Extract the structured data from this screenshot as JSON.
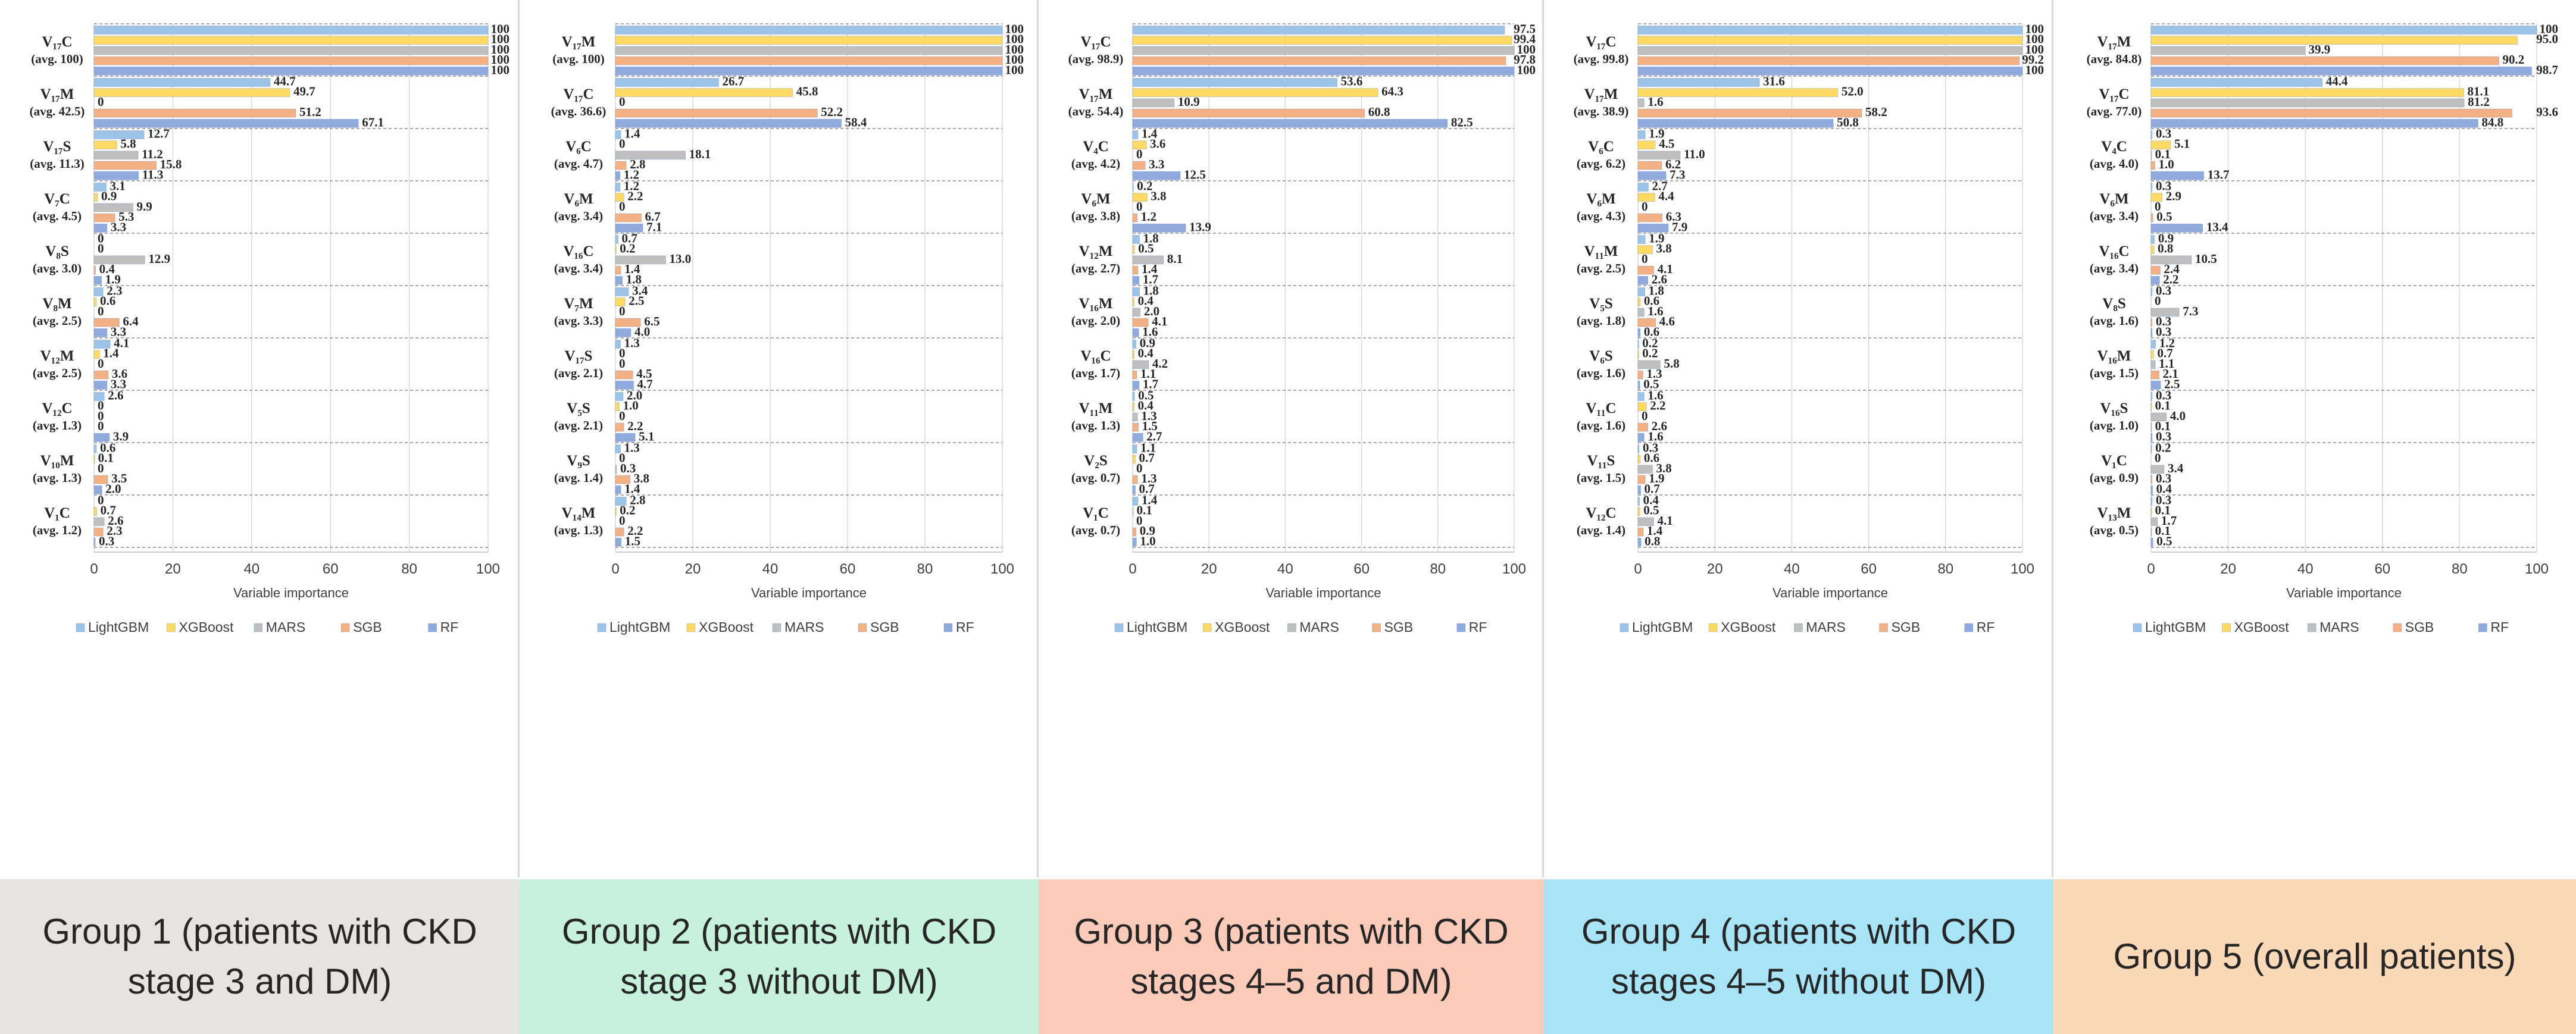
{
  "legend": [
    "LightGBM",
    "XGBoost",
    "MARS",
    "SGB",
    "RF"
  ],
  "colors": {
    "LightGBM": "#9DC3E6",
    "XGBoost": "#FFD966",
    "MARS": "#BFBFBF",
    "SGB": "#F4B183",
    "RF": "#8FAADC",
    "gridline": "#d9d9d9",
    "divider": "#8c8c8c",
    "text": "#262626"
  },
  "captions": [
    {
      "text": "Group 1 (patients with CKD stage 3 and DM)",
      "bg": "#E7E3E1"
    },
    {
      "text": "Group 2 (patients with CKD stage 3 without DM)",
      "bg": "#C6F2DC"
    },
    {
      "text": "Group 3 (patients with CKD stages 4–5 and DM)",
      "bg": "#FCCAB8"
    },
    {
      "text": "Group 4 (patients with CKD stages 4–5 without DM)",
      "bg": "#A8E4F8"
    },
    {
      "text": "Group 5 (overall patients)",
      "bg": "#FBD9B8"
    }
  ],
  "chart_data": [
    {
      "type": "bar",
      "orientation": "horizontal",
      "xlabel": "Variable importance",
      "xlim": [
        0,
        100
      ],
      "xticks": [
        "0",
        "20",
        "40",
        "60",
        "80",
        "100"
      ],
      "legend_position": "bottom",
      "groups": [
        {
          "name": "V₁₇C",
          "avg": "(avg. 100)",
          "values": [
            "100",
            "100",
            "100",
            "100",
            "100"
          ]
        },
        {
          "name": "V₁₇M",
          "avg": "(avg. 42.5)",
          "values": [
            "44.7",
            "49.7",
            "0",
            "51.2",
            "67.1"
          ]
        },
        {
          "name": "V₁₇S",
          "avg": "(avg. 11.3)",
          "values": [
            "12.7",
            "5.8",
            "11.2",
            "15.8",
            "11.3"
          ]
        },
        {
          "name": "V₇C",
          "avg": "(avg. 4.5)",
          "values": [
            "3.1",
            "0.9",
            "9.9",
            "5.3",
            "3.3"
          ]
        },
        {
          "name": "V₈S",
          "avg": "(avg. 3.0)",
          "values": [
            "0",
            "0",
            "12.9",
            "0.4",
            "1.9"
          ]
        },
        {
          "name": "V₈M",
          "avg": "(avg. 2.5)",
          "values": [
            "2.3",
            "0.6",
            "0",
            "6.4",
            "3.3"
          ]
        },
        {
          "name": "V₁₂M",
          "avg": "(avg. 2.5)",
          "values": [
            "4.1",
            "1.4",
            "0",
            "3.6",
            "3.3"
          ]
        },
        {
          "name": "V₁₂C",
          "avg": "(avg. 1.3)",
          "values": [
            "2.6",
            "0",
            "0",
            "0",
            "3.9"
          ]
        },
        {
          "name": "V₁₀M",
          "avg": "(avg. 1.3)",
          "values": [
            "0.6",
            "0.1",
            "0",
            "3.5",
            "2.0"
          ]
        },
        {
          "name": "V₁C",
          "avg": "(avg. 1.2)",
          "values": [
            "0",
            "0.7",
            "2.6",
            "2.3",
            "0.3"
          ]
        }
      ]
    },
    {
      "type": "bar",
      "orientation": "horizontal",
      "xlabel": "Variable importance",
      "xlim": [
        0,
        100
      ],
      "xticks": [
        "0",
        "20",
        "40",
        "60",
        "80",
        "100"
      ],
      "legend_position": "bottom",
      "groups": [
        {
          "name": "V₁₇M",
          "avg": "(avg. 100)",
          "values": [
            "100",
            "100",
            "100",
            "100",
            "100"
          ]
        },
        {
          "name": "V₁₇C",
          "avg": "(avg. 36.6)",
          "values": [
            "26.7",
            "45.8",
            "0",
            "52.2",
            "58.4"
          ]
        },
        {
          "name": "V₆C",
          "avg": "(avg. 4.7)",
          "values": [
            "1.4",
            "0",
            "18.1",
            "2.8",
            "1.2"
          ]
        },
        {
          "name": "V₆M",
          "avg": "(avg. 3.4)",
          "values": [
            "1.2",
            "2.2",
            "0",
            "6.7",
            "7.1"
          ]
        },
        {
          "name": "V₁₆C",
          "avg": "(avg. 3.4)",
          "values": [
            "0.7",
            "0.2",
            "13.0",
            "1.4",
            "1.8"
          ]
        },
        {
          "name": "V₇M",
          "avg": "(avg. 3.3)",
          "values": [
            "3.4",
            "2.5",
            "0",
            "6.5",
            "4.0"
          ]
        },
        {
          "name": "V₁₇S",
          "avg": "(avg. 2.1)",
          "values": [
            "1.3",
            "0",
            "0",
            "4.5",
            "4.7"
          ]
        },
        {
          "name": "V₅S",
          "avg": "(avg. 2.1)",
          "values": [
            "2.0",
            "1.0",
            "0",
            "2.2",
            "5.1"
          ]
        },
        {
          "name": "V₉S",
          "avg": "(avg. 1.4)",
          "values": [
            "1.3",
            "0",
            "0.3",
            "3.8",
            "1.4"
          ]
        },
        {
          "name": "V₁₄M",
          "avg": "(avg. 1.3)",
          "values": [
            "2.8",
            "0.2",
            "0",
            "2.2",
            "1.5"
          ]
        }
      ]
    },
    {
      "type": "bar",
      "orientation": "horizontal",
      "xlabel": "Variable importance",
      "xlim": [
        0,
        100
      ],
      "xticks": [
        "0",
        "20",
        "40",
        "60",
        "80",
        "100"
      ],
      "legend_position": "bottom",
      "groups": [
        {
          "name": "V₁₇C",
          "avg": "(avg. 98.9)",
          "values": [
            "97.5",
            "99.4",
            "100",
            "97.8",
            "100"
          ]
        },
        {
          "name": "V₁₇M",
          "avg": "(avg. 54.4)",
          "values": [
            "53.6",
            "64.3",
            "10.9",
            "60.8",
            "82.5"
          ]
        },
        {
          "name": "V₄C",
          "avg": "(avg. 4.2)",
          "values": [
            "1.4",
            "3.6",
            "0",
            "3.3",
            "12.5"
          ]
        },
        {
          "name": "V₆M",
          "avg": "(avg. 3.8)",
          "values": [
            "0.2",
            "3.8",
            "0",
            "1.2",
            "13.9"
          ]
        },
        {
          "name": "V₁₂M",
          "avg": "(avg. 2.7)",
          "values": [
            "1.8",
            "0.5",
            "8.1",
            "1.4",
            "1.7"
          ]
        },
        {
          "name": "V₁₆M",
          "avg": "(avg. 2.0)",
          "values": [
            "1.8",
            "0.4",
            "2.0",
            "4.1",
            "1.6"
          ]
        },
        {
          "name": "V₁₆C",
          "avg": "(avg. 1.7)",
          "values": [
            "0.9",
            "0.4",
            "4.2",
            "1.1",
            "1.7"
          ]
        },
        {
          "name": "V₁₁M",
          "avg": "(avg. 1.3)",
          "values": [
            "0.5",
            "0.4",
            "1.3",
            "1.5",
            "2.7"
          ]
        },
        {
          "name": "V₂S",
          "avg": "(avg. 0.7)",
          "values": [
            "1.1",
            "0.7",
            "0",
            "1.3",
            "0.7"
          ]
        },
        {
          "name": "V₁C",
          "avg": "(avg. 0.7)",
          "values": [
            "1.4",
            "0.1",
            "0",
            "0.9",
            "1.0"
          ]
        }
      ]
    },
    {
      "type": "bar",
      "orientation": "horizontal",
      "xlabel": "Variable importance",
      "xlim": [
        0,
        100
      ],
      "xticks": [
        "0",
        "20",
        "40",
        "60",
        "80",
        "100"
      ],
      "legend_position": "bottom",
      "groups": [
        {
          "name": "V₁₇C",
          "avg": "(avg. 99.8)",
          "values": [
            "100",
            "100",
            "100",
            "99.2",
            "100"
          ]
        },
        {
          "name": "V₁₇M",
          "avg": "(avg. 38.9)",
          "values": [
            "31.6",
            "52.0",
            "1.6",
            "58.2",
            "50.8"
          ]
        },
        {
          "name": "V₆C",
          "avg": "(avg. 6.2)",
          "values": [
            "1.9",
            "4.5",
            "11.0",
            "6.2",
            "7.3"
          ]
        },
        {
          "name": "V₆M",
          "avg": "(avg. 4.3)",
          "values": [
            "2.7",
            "4.4",
            "0",
            "6.3",
            "7.9"
          ]
        },
        {
          "name": "V₁₁M",
          "avg": "(avg. 2.5)",
          "values": [
            "1.9",
            "3.8",
            "0",
            "4.1",
            "2.6"
          ]
        },
        {
          "name": "V₅S",
          "avg": "(avg. 1.8)",
          "values": [
            "1.8",
            "0.6",
            "1.6",
            "4.6",
            "0.6"
          ]
        },
        {
          "name": "V₆S",
          "avg": "(avg. 1.6)",
          "values": [
            "0.2",
            "0.2",
            "5.8",
            "1.3",
            "0.5"
          ]
        },
        {
          "name": "V₁₁C",
          "avg": "(avg. 1.6)",
          "values": [
            "1.6",
            "2.2",
            "0",
            "2.6",
            "1.6"
          ]
        },
        {
          "name": "V₁₁S",
          "avg": "(avg. 1.5)",
          "values": [
            "0.3",
            "0.6",
            "3.8",
            "1.9",
            "0.7"
          ]
        },
        {
          "name": "V₁₂C",
          "avg": "(avg. 1.4)",
          "values": [
            "0.4",
            "0.5",
            "4.1",
            "1.4",
            "0.8"
          ]
        }
      ]
    },
    {
      "type": "bar",
      "orientation": "horizontal",
      "xlabel": "Variable importance",
      "xlim": [
        0,
        100
      ],
      "xticks": [
        "0",
        "20",
        "40",
        "60",
        "80",
        "100"
      ],
      "legend_position": "bottom",
      "groups": [
        {
          "name": "V₁₇M",
          "avg": "(avg. 84.8)",
          "values": [
            "100",
            "95.0",
            "39.9",
            "90.2",
            "98.7"
          ]
        },
        {
          "name": "V₁₇C",
          "avg": "(avg. 77.0)",
          "values": [
            "44.4",
            "81.1",
            "81.2",
            "93.6",
            "84.8"
          ]
        },
        {
          "name": "V₄C",
          "avg": "(avg. 4.0)",
          "values": [
            "0.3",
            "5.1",
            "0.1",
            "1.0",
            "13.7"
          ]
        },
        {
          "name": "V₆M",
          "avg": "(avg. 3.4)",
          "values": [
            "0.3",
            "2.9",
            "0",
            "0.5",
            "13.4"
          ]
        },
        {
          "name": "V₁₆C",
          "avg": "(avg. 3.4)",
          "values": [
            "0.9",
            "0.8",
            "10.5",
            "2.4",
            "2.2"
          ]
        },
        {
          "name": "V₈S",
          "avg": "(avg. 1.6)",
          "values": [
            "0.3",
            "0",
            "7.3",
            "0.3",
            "0.3"
          ]
        },
        {
          "name": "V₁₆M",
          "avg": "(avg. 1.5)",
          "values": [
            "1.2",
            "0.7",
            "1.1",
            "2.1",
            "2.5"
          ]
        },
        {
          "name": "V₁₆S",
          "avg": "(avg. 1.0)",
          "values": [
            "0.3",
            "0.1",
            "4.0",
            "0.1",
            "0.3"
          ]
        },
        {
          "name": "V₁C",
          "avg": "(avg. 0.9)",
          "values": [
            "0.2",
            "0",
            "3.4",
            "0.3",
            "0.4"
          ]
        },
        {
          "name": "V₁₃M",
          "avg": "(avg. 0.5)",
          "values": [
            "0.3",
            "0.1",
            "1.7",
            "0.1",
            "0.5"
          ]
        }
      ]
    }
  ]
}
